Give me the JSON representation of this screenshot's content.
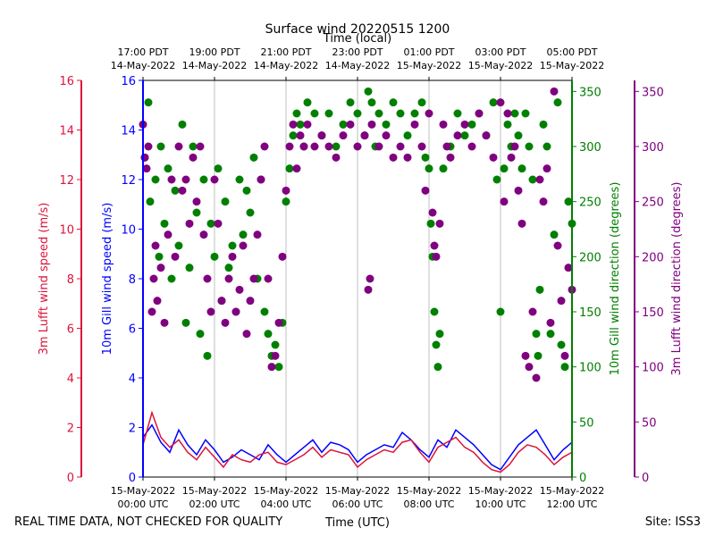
{
  "title": "Surface wind 20220515 1200",
  "footer": {
    "left_note": "REAL TIME DATA, NOT CHECKED FOR QUALITY",
    "site": "Site: ISS3"
  },
  "colors": {
    "lufft_speed": "#dc143c",
    "gill_speed": "#0000ff",
    "gill_dir": "#008000",
    "lufft_dir": "#800080",
    "grid": "#b0b0b0"
  },
  "chart_data": {
    "type": "line+scatter",
    "title": "Surface wind 20220515 1200",
    "x_bottom_label": "Time (UTC)",
    "x_top_label": "Time (local)",
    "x_range_hours_utc": [
      0,
      12
    ],
    "bottom_ticks": [
      {
        "hour": 0,
        "date": "15-May-2022",
        "time": "00:00 UTC"
      },
      {
        "hour": 2,
        "date": "15-May-2022",
        "time": "02:00 UTC"
      },
      {
        "hour": 4,
        "date": "15-May-2022",
        "time": "04:00 UTC"
      },
      {
        "hour": 6,
        "date": "15-May-2022",
        "time": "06:00 UTC"
      },
      {
        "hour": 8,
        "date": "15-May-2022",
        "time": "08:00 UTC"
      },
      {
        "hour": 10,
        "date": "15-May-2022",
        "time": "10:00 UTC"
      },
      {
        "hour": 12,
        "date": "15-May-2022",
        "time": "12:00 UTC"
      }
    ],
    "top_ticks": [
      {
        "hour": 0,
        "time": "17:00 PDT",
        "date": "14-May-2022"
      },
      {
        "hour": 2,
        "time": "19:00 PDT",
        "date": "14-May-2022"
      },
      {
        "hour": 4,
        "time": "21:00 PDT",
        "date": "14-May-2022"
      },
      {
        "hour": 6,
        "time": "23:00 PDT",
        "date": "14-May-2022"
      },
      {
        "hour": 8,
        "time": "01:00 PDT",
        "date": "15-May-2022"
      },
      {
        "hour": 10,
        "time": "03:00 PDT",
        "date": "15-May-2022"
      },
      {
        "hour": 12,
        "time": "05:00 PDT",
        "date": "15-May-2022"
      }
    ],
    "axes": {
      "lufft_speed": {
        "label": "3m Lufft wind speed (m/s)",
        "ylim": [
          0,
          16
        ],
        "ticks": [
          "0",
          "2",
          "4",
          "6",
          "8",
          "10",
          "12",
          "14",
          "16"
        ]
      },
      "gill_speed": {
        "label": "10m Gill wind speed (m/s)",
        "ylim": [
          0,
          16
        ],
        "ticks": [
          "0",
          "2",
          "4",
          "6",
          "8",
          "10",
          "12",
          "14",
          "16"
        ]
      },
      "gill_dir": {
        "label": "10m Gill wind direction (degrees)",
        "ylim": [
          0,
          360
        ],
        "ticks": [
          "0",
          "50",
          "100",
          "150",
          "200",
          "250",
          "300",
          "350"
        ]
      },
      "lufft_dir": {
        "label": "3m Lufft wind direction (degrees)",
        "ylim": [
          0,
          360
        ],
        "ticks": [
          "0",
          "50",
          "100",
          "150",
          "200",
          "250",
          "300",
          "350"
        ]
      }
    },
    "speed_series": [
      {
        "name": "10m Gill wind speed",
        "x_hours": [
          0,
          0.25,
          0.5,
          0.75,
          1,
          1.25,
          1.5,
          1.75,
          2,
          2.25,
          2.5,
          2.75,
          3,
          3.25,
          3.5,
          3.75,
          4,
          4.25,
          4.5,
          4.75,
          5,
          5.25,
          5.5,
          5.75,
          6,
          6.25,
          6.5,
          6.75,
          7,
          7.25,
          7.5,
          7.75,
          8,
          8.25,
          8.5,
          8.75,
          9,
          9.25,
          9.5,
          9.75,
          10,
          10.25,
          10.5,
          10.75,
          11,
          11.25,
          11.5,
          11.75,
          12
        ],
        "values": [
          1.6,
          2.1,
          1.4,
          1.0,
          1.9,
          1.3,
          0.9,
          1.5,
          1.1,
          0.6,
          0.8,
          1.1,
          0.9,
          0.7,
          1.3,
          0.9,
          0.6,
          0.9,
          1.2,
          1.5,
          1.0,
          1.4,
          1.3,
          1.1,
          0.6,
          0.9,
          1.1,
          1.3,
          1.2,
          1.8,
          1.5,
          1.1,
          0.8,
          1.5,
          1.2,
          1.9,
          1.6,
          1.3,
          0.9,
          0.5,
          0.3,
          0.8,
          1.3,
          1.6,
          1.9,
          1.3,
          0.7,
          1.1,
          1.4
        ]
      },
      {
        "name": "3m Lufft wind speed",
        "x_hours": [
          0,
          0.25,
          0.5,
          0.75,
          1,
          1.25,
          1.5,
          1.75,
          2,
          2.25,
          2.5,
          2.75,
          3,
          3.25,
          3.5,
          3.75,
          4,
          4.25,
          4.5,
          4.75,
          5,
          5.25,
          5.5,
          5.75,
          6,
          6.25,
          6.5,
          6.75,
          7,
          7.25,
          7.5,
          7.75,
          8,
          8.25,
          8.5,
          8.75,
          9,
          9.25,
          9.5,
          9.75,
          10,
          10.25,
          10.5,
          10.75,
          11,
          11.25,
          11.5,
          11.75,
          12
        ],
        "values": [
          1.3,
          2.6,
          1.6,
          1.2,
          1.5,
          1.0,
          0.7,
          1.2,
          0.8,
          0.4,
          0.9,
          0.7,
          0.6,
          0.9,
          1.0,
          0.6,
          0.5,
          0.7,
          0.9,
          1.2,
          0.8,
          1.1,
          1.0,
          0.9,
          0.4,
          0.7,
          0.9,
          1.1,
          1.0,
          1.4,
          1.5,
          1.0,
          0.6,
          1.2,
          1.4,
          1.6,
          1.2,
          1.0,
          0.6,
          0.3,
          0.2,
          0.5,
          1.0,
          1.3,
          1.2,
          0.9,
          0.5,
          0.8,
          1.0
        ]
      }
    ],
    "direction_series": [
      {
        "name": "10m Gill wind direction",
        "points": [
          [
            0.05,
            290
          ],
          [
            0.15,
            340
          ],
          [
            0.2,
            250
          ],
          [
            0.35,
            270
          ],
          [
            0.45,
            200
          ],
          [
            0.5,
            300
          ],
          [
            0.6,
            230
          ],
          [
            0.7,
            280
          ],
          [
            0.8,
            180
          ],
          [
            0.9,
            260
          ],
          [
            1.0,
            210
          ],
          [
            1.1,
            320
          ],
          [
            1.2,
            140
          ],
          [
            1.3,
            190
          ],
          [
            1.4,
            300
          ],
          [
            1.5,
            240
          ],
          [
            1.6,
            130
          ],
          [
            1.7,
            270
          ],
          [
            1.8,
            110
          ],
          [
            1.9,
            230
          ],
          [
            2.0,
            200
          ],
          [
            2.1,
            280
          ],
          [
            2.2,
            160
          ],
          [
            2.3,
            250
          ],
          [
            2.4,
            190
          ],
          [
            2.5,
            210
          ],
          [
            2.6,
            150
          ],
          [
            2.7,
            270
          ],
          [
            2.8,
            220
          ],
          [
            2.9,
            260
          ],
          [
            3.0,
            240
          ],
          [
            3.1,
            290
          ],
          [
            3.2,
            180
          ],
          [
            3.3,
            270
          ],
          [
            3.4,
            150
          ],
          [
            3.5,
            130
          ],
          [
            3.6,
            110
          ],
          [
            3.7,
            120
          ],
          [
            3.8,
            100
          ],
          [
            3.9,
            140
          ],
          [
            4.0,
            250
          ],
          [
            4.1,
            280
          ],
          [
            4.2,
            310
          ],
          [
            4.3,
            330
          ],
          [
            4.4,
            320
          ],
          [
            4.5,
            300
          ],
          [
            4.6,
            340
          ],
          [
            4.8,
            330
          ],
          [
            5.0,
            310
          ],
          [
            5.2,
            330
          ],
          [
            5.4,
            300
          ],
          [
            5.6,
            320
          ],
          [
            5.8,
            340
          ],
          [
            6.0,
            330
          ],
          [
            6.2,
            310
          ],
          [
            6.3,
            350
          ],
          [
            6.4,
            340
          ],
          [
            6.5,
            300
          ],
          [
            6.6,
            330
          ],
          [
            6.8,
            320
          ],
          [
            7.0,
            340
          ],
          [
            7.2,
            330
          ],
          [
            7.4,
            310
          ],
          [
            7.6,
            330
          ],
          [
            7.8,
            340
          ],
          [
            7.9,
            290
          ],
          [
            8.0,
            280
          ],
          [
            8.05,
            230
          ],
          [
            8.1,
            200
          ],
          [
            8.15,
            150
          ],
          [
            8.2,
            120
          ],
          [
            8.25,
            100
          ],
          [
            8.3,
            130
          ],
          [
            8.4,
            280
          ],
          [
            8.6,
            300
          ],
          [
            8.8,
            330
          ],
          [
            9.0,
            310
          ],
          [
            9.2,
            320
          ],
          [
            9.4,
            330
          ],
          [
            9.6,
            310
          ],
          [
            9.8,
            340
          ],
          [
            9.9,
            270
          ],
          [
            10.0,
            150
          ],
          [
            10.1,
            280
          ],
          [
            10.2,
            320
          ],
          [
            10.3,
            300
          ],
          [
            10.4,
            330
          ],
          [
            10.5,
            310
          ],
          [
            10.6,
            280
          ],
          [
            10.7,
            330
          ],
          [
            10.8,
            300
          ],
          [
            10.9,
            270
          ],
          [
            11.0,
            130
          ],
          [
            11.05,
            110
          ],
          [
            11.1,
            170
          ],
          [
            11.2,
            320
          ],
          [
            11.3,
            300
          ],
          [
            11.4,
            130
          ],
          [
            11.5,
            220
          ],
          [
            11.6,
            340
          ],
          [
            11.7,
            120
          ],
          [
            11.8,
            100
          ],
          [
            11.9,
            250
          ],
          [
            12.0,
            230
          ]
        ]
      },
      {
        "name": "3m Lufft wind direction",
        "points": [
          [
            0.0,
            320
          ],
          [
            0.05,
            290
          ],
          [
            0.1,
            280
          ],
          [
            0.15,
            300
          ],
          [
            0.25,
            150
          ],
          [
            0.3,
            180
          ],
          [
            0.35,
            210
          ],
          [
            0.4,
            160
          ],
          [
            0.5,
            190
          ],
          [
            0.6,
            140
          ],
          [
            0.7,
            220
          ],
          [
            0.8,
            270
          ],
          [
            0.9,
            200
          ],
          [
            1.0,
            300
          ],
          [
            1.1,
            260
          ],
          [
            1.2,
            270
          ],
          [
            1.3,
            230
          ],
          [
            1.4,
            290
          ],
          [
            1.5,
            250
          ],
          [
            1.6,
            300
          ],
          [
            1.7,
            220
          ],
          [
            1.8,
            180
          ],
          [
            1.9,
            150
          ],
          [
            2.0,
            270
          ],
          [
            2.1,
            230
          ],
          [
            2.2,
            160
          ],
          [
            2.3,
            140
          ],
          [
            2.4,
            180
          ],
          [
            2.5,
            200
          ],
          [
            2.6,
            150
          ],
          [
            2.7,
            170
          ],
          [
            2.8,
            210
          ],
          [
            2.9,
            130
          ],
          [
            3.0,
            160
          ],
          [
            3.1,
            180
          ],
          [
            3.2,
            220
          ],
          [
            3.3,
            270
          ],
          [
            3.4,
            300
          ],
          [
            3.5,
            180
          ],
          [
            3.6,
            100
          ],
          [
            3.7,
            110
          ],
          [
            3.8,
            140
          ],
          [
            3.9,
            200
          ],
          [
            4.0,
            260
          ],
          [
            4.1,
            300
          ],
          [
            4.2,
            320
          ],
          [
            4.3,
            280
          ],
          [
            4.4,
            310
          ],
          [
            4.5,
            300
          ],
          [
            4.6,
            320
          ],
          [
            4.8,
            300
          ],
          [
            5.0,
            310
          ],
          [
            5.2,
            300
          ],
          [
            5.4,
            290
          ],
          [
            5.6,
            310
          ],
          [
            5.8,
            320
          ],
          [
            6.0,
            300
          ],
          [
            6.2,
            310
          ],
          [
            6.3,
            170
          ],
          [
            6.35,
            180
          ],
          [
            6.4,
            320
          ],
          [
            6.6,
            300
          ],
          [
            6.8,
            310
          ],
          [
            7.0,
            290
          ],
          [
            7.2,
            300
          ],
          [
            7.4,
            290
          ],
          [
            7.6,
            320
          ],
          [
            7.8,
            300
          ],
          [
            7.9,
            260
          ],
          [
            8.0,
            330
          ],
          [
            8.1,
            240
          ],
          [
            8.15,
            210
          ],
          [
            8.2,
            200
          ],
          [
            8.3,
            230
          ],
          [
            8.4,
            320
          ],
          [
            8.5,
            300
          ],
          [
            8.6,
            290
          ],
          [
            8.8,
            310
          ],
          [
            9.0,
            320
          ],
          [
            9.2,
            300
          ],
          [
            9.4,
            330
          ],
          [
            9.6,
            310
          ],
          [
            9.8,
            290
          ],
          [
            10.0,
            340
          ],
          [
            10.1,
            250
          ],
          [
            10.2,
            330
          ],
          [
            10.3,
            290
          ],
          [
            10.4,
            300
          ],
          [
            10.5,
            260
          ],
          [
            10.6,
            230
          ],
          [
            10.7,
            110
          ],
          [
            10.8,
            100
          ],
          [
            10.9,
            150
          ],
          [
            11.0,
            90
          ],
          [
            11.1,
            270
          ],
          [
            11.2,
            250
          ],
          [
            11.3,
            280
          ],
          [
            11.4,
            140
          ],
          [
            11.5,
            350
          ],
          [
            11.6,
            210
          ],
          [
            11.7,
            160
          ],
          [
            11.8,
            110
          ],
          [
            11.9,
            190
          ],
          [
            12.0,
            170
          ]
        ]
      }
    ]
  }
}
